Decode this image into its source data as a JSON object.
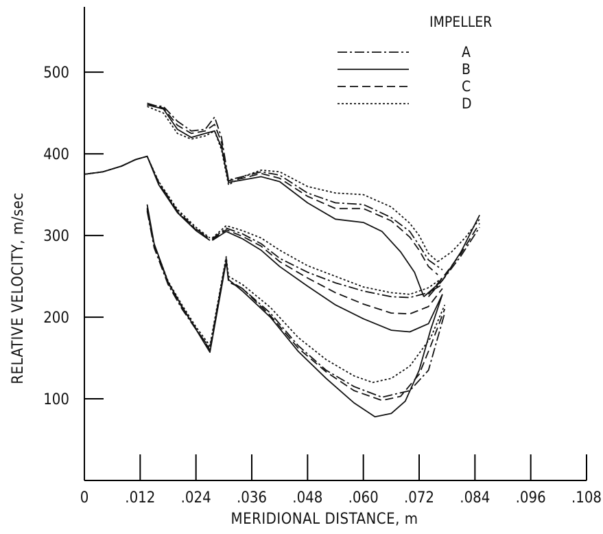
{
  "chart_data": {
    "type": "line",
    "xlabel": "MERIDIONAL DISTANCE, m",
    "ylabel": "RELATIVE VELOCITY,  m/sec",
    "xlim": [
      0,
      0.108
    ],
    "ylim": [
      0,
      580
    ],
    "x_ticks": [
      0,
      0.012,
      0.024,
      0.036,
      0.048,
      0.06,
      0.072,
      0.084,
      0.096,
      0.108
    ],
    "x_tick_labels": [
      "0",
      ".012",
      ".024",
      ".036",
      ".048",
      ".060",
      ".072",
      ".084",
      ".096",
      ".108"
    ],
    "y_ticks": [
      100,
      200,
      300,
      400,
      500
    ],
    "y_tick_labels": [
      "100",
      "200",
      "300",
      "400",
      "500"
    ],
    "legend": {
      "title": "IMPELLER",
      "placement": "top-right",
      "entries": [
        {
          "label": "A",
          "style": "dash-dot"
        },
        {
          "label": "B",
          "style": "solid"
        },
        {
          "label": "C",
          "style": "dashed"
        },
        {
          "label": "D",
          "style": "dotted"
        }
      ]
    },
    "series": [
      {
        "name": "A",
        "style": "dash-dot",
        "curves": [
          {
            "x": [
              0.0,
              0.004,
              0.008,
              0.011,
              0.0135,
              0.016,
              0.02,
              0.024,
              0.027
            ],
            "y": [
              375,
              378,
              385,
              393,
              397,
              365,
              330,
              308,
              296
            ]
          },
          {
            "x": [
              0.0275,
              0.0305,
              0.034,
              0.038,
              0.042,
              0.048,
              0.054,
              0.06,
              0.066,
              0.07,
              0.074,
              0.077
            ],
            "y": [
              296,
              309,
              302,
              290,
              272,
              255,
              242,
              232,
              225,
              224,
              230,
              240
            ]
          },
          {
            "x": [
              0.0135,
              0.015,
              0.018,
              0.021,
              0.024,
              0.027,
              0.0305,
              0.031,
              0.034,
              0.04,
              0.046,
              0.052,
              0.058,
              0.064,
              0.07,
              0.074,
              0.0775
            ],
            "y": [
              330,
              285,
              240,
              210,
              185,
              162,
              272,
              245,
              235,
              205,
              165,
              135,
              115,
              102,
              110,
              135,
              205
            ]
          },
          {
            "x": [
              0.0135,
              0.017,
              0.02,
              0.023,
              0.026,
              0.028,
              0.0295,
              0.031,
              0.034,
              0.038,
              0.042,
              0.048,
              0.054,
              0.06,
              0.066,
              0.07,
              0.072,
              0.074,
              0.077
            ],
            "y": [
              460,
              458,
              440,
              428,
              430,
              445,
              420,
              368,
              372,
              378,
              374,
              352,
              340,
              338,
              322,
              305,
              288,
              270,
              258
            ]
          },
          {
            "x": [
              0.074,
              0.077,
              0.081,
              0.085
            ],
            "y": [
              225,
              245,
              275,
              310
            ]
          }
        ]
      },
      {
        "name": "B",
        "style": "solid",
        "curves": [
          {
            "x": [
              0.0,
              0.004,
              0.008,
              0.011,
              0.0135,
              0.016,
              0.02,
              0.024,
              0.027
            ],
            "y": [
              375,
              378,
              385,
              393,
              397,
              362,
              328,
              306,
              294
            ]
          },
          {
            "x": [
              0.0275,
              0.0305,
              0.034,
              0.038,
              0.042,
              0.048,
              0.054,
              0.06,
              0.066,
              0.07,
              0.074,
              0.077
            ],
            "y": [
              294,
              305,
              296,
              282,
              262,
              238,
              215,
              198,
              184,
              182,
              192,
              228
            ]
          },
          {
            "x": [
              0.0135,
              0.015,
              0.018,
              0.021,
              0.024,
              0.027,
              0.0305,
              0.031,
              0.034,
              0.04,
              0.046,
              0.052,
              0.058,
              0.0625,
              0.066,
              0.069,
              0.072,
              0.0745,
              0.077
            ],
            "y": [
              338,
              290,
              243,
              213,
              185,
              157,
              268,
              246,
              232,
              200,
              158,
              125,
              95,
              78,
              82,
              97,
              135,
              185,
              228
            ]
          },
          {
            "x": [
              0.0135,
              0.017,
              0.02,
              0.023,
              0.026,
              0.028,
              0.0295,
              0.031,
              0.034,
              0.038,
              0.042,
              0.048,
              0.054,
              0.06,
              0.064,
              0.068,
              0.071,
              0.073
            ],
            "y": [
              460,
              455,
              430,
              420,
              425,
              428,
              408,
              365,
              368,
              372,
              366,
              340,
              320,
              316,
              305,
              280,
              255,
              225
            ]
          },
          {
            "x": [
              0.073,
              0.077,
              0.081,
              0.085
            ],
            "y": [
              225,
              245,
              280,
              325
            ]
          }
        ]
      },
      {
        "name": "C",
        "style": "dashed",
        "curves": [
          {
            "x": [
              0.0,
              0.004,
              0.008,
              0.011,
              0.0135,
              0.016,
              0.02,
              0.024,
              0.027
            ],
            "y": [
              375,
              378,
              385,
              393,
              397,
              364,
              329,
              307,
              295
            ]
          },
          {
            "x": [
              0.0275,
              0.0305,
              0.034,
              0.038,
              0.042,
              0.048,
              0.054,
              0.06,
              0.066,
              0.07,
              0.074,
              0.077
            ],
            "y": [
              295,
              307,
              299,
              287,
              268,
              248,
              230,
              216,
              205,
              204,
              213,
              235
            ]
          },
          {
            "x": [
              0.0135,
              0.015,
              0.018,
              0.021,
              0.024,
              0.027,
              0.0305,
              0.031,
              0.034,
              0.04,
              0.046,
              0.052,
              0.058,
              0.064,
              0.068,
              0.072,
              0.0745,
              0.0775
            ],
            "y": [
              332,
              288,
              242,
              212,
              186,
              160,
              270,
              243,
              235,
              202,
              162,
              133,
              110,
              98,
              103,
              130,
              165,
              210
            ]
          },
          {
            "x": [
              0.0135,
              0.017,
              0.02,
              0.023,
              0.026,
              0.028,
              0.0295,
              0.031,
              0.034,
              0.038,
              0.042,
              0.048,
              0.054,
              0.06,
              0.066,
              0.07,
              0.072,
              0.074,
              0.076
            ],
            "y": [
              462,
              456,
              435,
              425,
              428,
              436,
              414,
              367,
              370,
              376,
              370,
              348,
              333,
              333,
              318,
              298,
              282,
              262,
              252
            ]
          },
          {
            "x": [
              0.074,
              0.077,
              0.081,
              0.085
            ],
            "y": [
              228,
              248,
              278,
              315
            ]
          }
        ]
      },
      {
        "name": "D",
        "style": "dotted",
        "curves": [
          {
            "x": [
              0.0,
              0.004,
              0.008,
              0.011,
              0.0135,
              0.016,
              0.02,
              0.024,
              0.027
            ],
            "y": [
              375,
              378,
              385,
              393,
              397,
              366,
              332,
              310,
              297
            ]
          },
          {
            "x": [
              0.0275,
              0.0305,
              0.034,
              0.038,
              0.042,
              0.048,
              0.054,
              0.06,
              0.066,
              0.07,
              0.074,
              0.077
            ],
            "y": [
              297,
              312,
              306,
              297,
              282,
              263,
              250,
              237,
              230,
              228,
              236,
              248
            ]
          },
          {
            "x": [
              0.0135,
              0.015,
              0.018,
              0.021,
              0.024,
              0.027,
              0.0305,
              0.031,
              0.034,
              0.04,
              0.046,
              0.052,
              0.058,
              0.062,
              0.066,
              0.07,
              0.0745,
              0.0775
            ],
            "y": [
              334,
              289,
              244,
              215,
              188,
              165,
              274,
              250,
              240,
              212,
              175,
              148,
              128,
              120,
              125,
              140,
              175,
              215
            ]
          },
          {
            "x": [
              0.0135,
              0.017,
              0.02,
              0.023,
              0.026,
              0.028,
              0.0295,
              0.031,
              0.034,
              0.038,
              0.042,
              0.048,
              0.054,
              0.06,
              0.066,
              0.07,
              0.072,
              0.074,
              0.076
            ],
            "y": [
              458,
              450,
              425,
              418,
              422,
              428,
              405,
              362,
              372,
              380,
              378,
              360,
              352,
              350,
              335,
              315,
              300,
              278,
              268
            ]
          },
          {
            "x": [
              0.076,
              0.079,
              0.082,
              0.085
            ],
            "y": [
              268,
              280,
              298,
              320
            ]
          }
        ]
      }
    ]
  }
}
